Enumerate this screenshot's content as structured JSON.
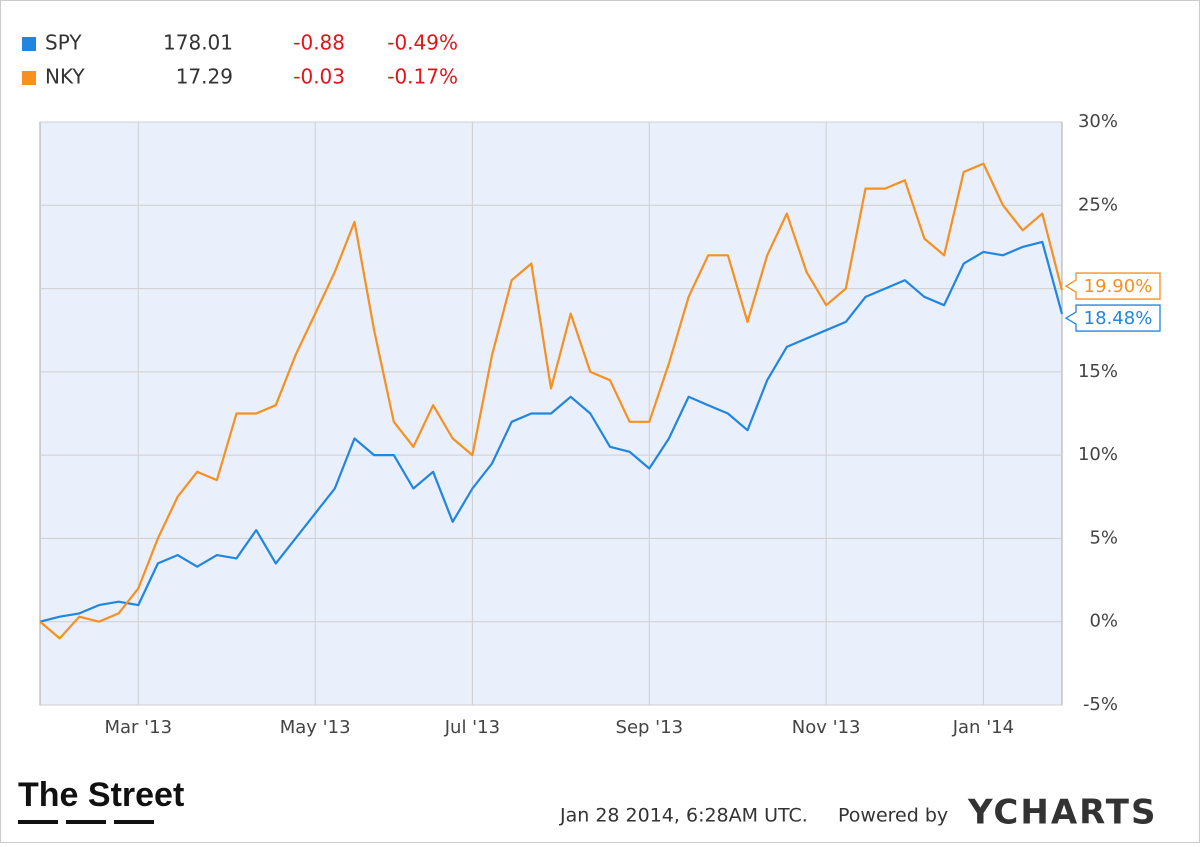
{
  "chart_data": {
    "type": "line",
    "categories": [
      null,
      null,
      null,
      null,
      null,
      "Mar '13",
      null,
      null,
      null,
      null,
      null,
      null,
      null,
      null,
      "May '13",
      null,
      null,
      null,
      null,
      null,
      null,
      null,
      "Jul '13",
      null,
      null,
      null,
      null,
      null,
      null,
      null,
      null,
      "Sep '13",
      null,
      null,
      null,
      null,
      null,
      null,
      null,
      null,
      "Nov '13",
      null,
      null,
      null,
      null,
      null,
      null,
      null,
      "Jan '14",
      null,
      null,
      null,
      null
    ],
    "series": [
      {
        "name": "SPY",
        "color": "#2086e0",
        "price": "178.01",
        "change": "-0.88",
        "change_pct": "-0.49%",
        "values": [
          0,
          0.3,
          0.5,
          1,
          1.2,
          1.0,
          3.5,
          4,
          3.3,
          4,
          3.8,
          5.5,
          3.5,
          5,
          6.5,
          8,
          11,
          10,
          10,
          8,
          9,
          6,
          8,
          9.5,
          12,
          12.5,
          12.5,
          13.5,
          12.5,
          10.5,
          10.2,
          9.2,
          11,
          13.5,
          13,
          12.5,
          11.5,
          14.5,
          16.5,
          17,
          17.5,
          18,
          19.5,
          20,
          20.5,
          19.5,
          19,
          21.5,
          22.2,
          22,
          22.5,
          22.8,
          18.48
        ],
        "value_labels": [
          null,
          null,
          null,
          null,
          null,
          null,
          null,
          null,
          null,
          null,
          null,
          null,
          null,
          null,
          null,
          null,
          null,
          null,
          null,
          null,
          null,
          null,
          null,
          null,
          null,
          null,
          null,
          null,
          null,
          null,
          null,
          null,
          null,
          null,
          null,
          null,
          null,
          null,
          null,
          null,
          null,
          null,
          null,
          null,
          null,
          null,
          null,
          null,
          null,
          null,
          null,
          null,
          "18.48%"
        ]
      },
      {
        "name": "NKY",
        "color": "#f7901e",
        "price": "17.29",
        "change": "-0.03",
        "change_pct": "-0.17%",
        "values": [
          0,
          -1,
          0.3,
          0,
          0.5,
          2,
          5,
          7.5,
          9,
          8.5,
          12.5,
          12.5,
          13,
          16,
          18.5,
          21,
          24,
          17.5,
          12,
          10.5,
          13,
          11,
          10,
          16,
          20.5,
          21.5,
          14,
          18.5,
          15,
          14.5,
          12,
          12,
          15.5,
          19.5,
          22,
          22,
          18,
          22,
          24.5,
          21,
          19,
          20,
          26,
          26,
          26.5,
          23,
          22,
          27,
          27.5,
          25,
          23.5,
          24.5,
          19.9
        ],
        "value_labels": [
          null,
          null,
          null,
          null,
          null,
          null,
          null,
          null,
          null,
          null,
          null,
          null,
          null,
          null,
          null,
          null,
          null,
          null,
          null,
          null,
          null,
          null,
          null,
          null,
          null,
          null,
          null,
          null,
          null,
          null,
          null,
          null,
          null,
          null,
          null,
          null,
          null,
          null,
          null,
          null,
          null,
          null,
          null,
          null,
          null,
          null,
          null,
          null,
          null,
          null,
          null,
          null,
          "19.90%"
        ]
      }
    ],
    "ylim": [
      -5,
      30
    ],
    "yticks": [
      {
        "value": -5,
        "label": "-5%"
      },
      {
        "value": 0,
        "label": "0%"
      },
      {
        "value": 5,
        "label": "5%"
      },
      {
        "value": 10,
        "label": "10%"
      },
      {
        "value": 15,
        "label": "15%"
      },
      {
        "value": 20,
        "label": "20%"
      },
      {
        "value": 25,
        "label": "25%"
      },
      {
        "value": 30,
        "label": "30%"
      }
    ],
    "grid": true,
    "timestamp": "Jan 28 2014, 6:28AM UTC.",
    "powered_by": "Powered by",
    "brand": "YCHARTS",
    "publisher": "The Street"
  }
}
